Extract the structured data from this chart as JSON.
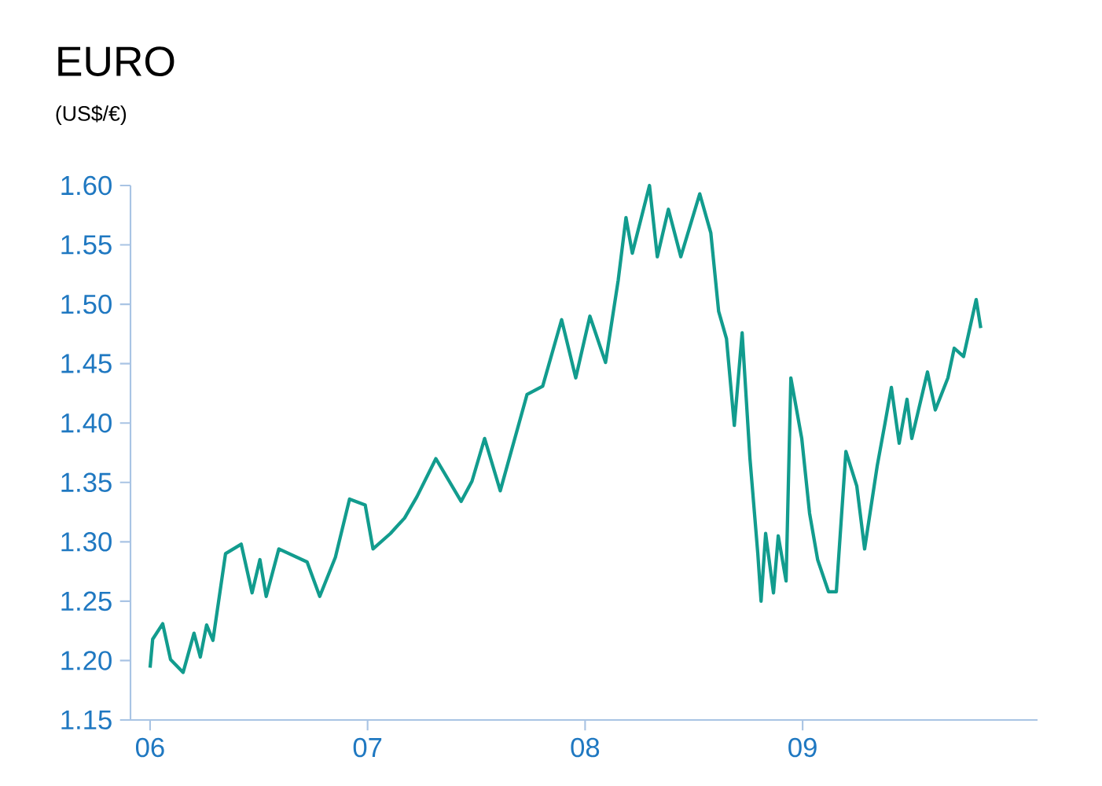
{
  "chart_data": {
    "type": "line",
    "title": "EURO",
    "subtitle": "(US$/€)",
    "x": [
      2006.0,
      2006.012,
      2006.058,
      2006.094,
      2006.152,
      2006.202,
      2006.231,
      2006.26,
      2006.289,
      2006.347,
      2006.419,
      2006.469,
      2006.505,
      2006.534,
      2006.592,
      2006.722,
      2006.78,
      2006.852,
      2006.917,
      2006.989,
      2007.025,
      2007.105,
      2007.17,
      2007.227,
      2007.314,
      2007.43,
      2007.48,
      2007.538,
      2007.61,
      2007.733,
      2007.805,
      2007.892,
      2007.957,
      2008.022,
      2008.094,
      2008.152,
      2008.188,
      2008.217,
      2008.296,
      2008.332,
      2008.383,
      2008.44,
      2008.527,
      2008.578,
      2008.614,
      2008.65,
      2008.686,
      2008.722,
      2008.758,
      2008.794,
      2008.809,
      2008.83,
      2008.866,
      2008.888,
      2008.924,
      2008.946,
      2008.996,
      2009.032,
      2009.069,
      2009.119,
      2009.155,
      2009.199,
      2009.249,
      2009.285,
      2009.343,
      2009.379,
      2009.408,
      2009.444,
      2009.48,
      2009.502,
      2009.574,
      2009.61,
      2009.668,
      2009.697,
      2009.74,
      2009.798,
      2009.819
    ],
    "series": [
      {
        "color": "#129c8e",
        "values": [
          1.194,
          1.218,
          1.231,
          1.201,
          1.19,
          1.223,
          1.203,
          1.23,
          1.217,
          1.29,
          1.298,
          1.257,
          1.285,
          1.254,
          1.294,
          1.283,
          1.254,
          1.287,
          1.336,
          1.331,
          1.294,
          1.307,
          1.32,
          1.338,
          1.37,
          1.334,
          1.351,
          1.387,
          1.343,
          1.424,
          1.431,
          1.487,
          1.438,
          1.49,
          1.451,
          1.52,
          1.573,
          1.543,
          1.6,
          1.54,
          1.58,
          1.54,
          1.593,
          1.56,
          1.494,
          1.471,
          1.398,
          1.476,
          1.37,
          1.29,
          1.25,
          1.307,
          1.257,
          1.305,
          1.267,
          1.438,
          1.387,
          1.324,
          1.285,
          1.258,
          1.258,
          1.376,
          1.347,
          1.294,
          1.364,
          1.4,
          1.43,
          1.383,
          1.42,
          1.387,
          1.443,
          1.411,
          1.438,
          1.463,
          1.456,
          1.504,
          1.48
        ]
      }
    ],
    "xlim": [
      2005.91,
      2010.08
    ],
    "ylim": [
      1.15,
      1.6
    ],
    "xticks": [
      {
        "value": 2006,
        "label": "06"
      },
      {
        "value": 2007,
        "label": "07"
      },
      {
        "value": 2008,
        "label": "08"
      },
      {
        "value": 2009,
        "label": "09"
      }
    ],
    "yticks": [
      {
        "value": 1.15,
        "label": "1.15"
      },
      {
        "value": 1.2,
        "label": "1.20"
      },
      {
        "value": 1.25,
        "label": "1.25"
      },
      {
        "value": 1.3,
        "label": "1.30"
      },
      {
        "value": 1.35,
        "label": "1.35"
      },
      {
        "value": 1.4,
        "label": "1.40"
      },
      {
        "value": 1.45,
        "label": "1.45"
      },
      {
        "value": 1.5,
        "label": "1.50"
      },
      {
        "value": 1.55,
        "label": "1.55"
      },
      {
        "value": 1.6,
        "label": "1.60"
      }
    ]
  }
}
